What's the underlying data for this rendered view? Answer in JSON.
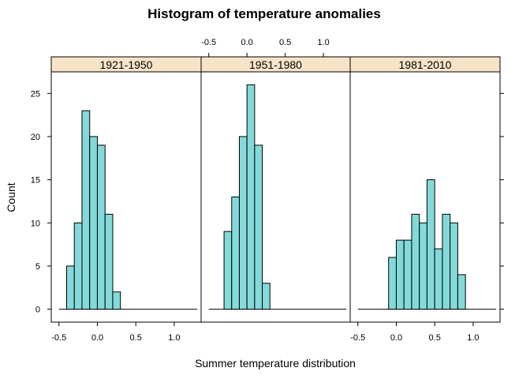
{
  "chart_data": {
    "type": "bar",
    "title": "Histogram of temperature anomalies",
    "xlabel": "Summer temperature distribution",
    "ylabel": "Count",
    "xlim": [
      -0.6,
      1.35
    ],
    "ylim": [
      -1.5,
      27.5
    ],
    "xticks": [
      -0.5,
      0.0,
      0.5,
      1.0
    ],
    "xtick_labels": [
      "-0.5",
      "0.0",
      "0.5",
      "1.0"
    ],
    "yticks": [
      0,
      5,
      10,
      15,
      20,
      25
    ],
    "ytick_labels": [
      "0",
      "5",
      "10",
      "15",
      "20",
      "25"
    ],
    "bin_width": 0.1,
    "baseline_range": [
      -0.5,
      1.3
    ],
    "panels": [
      {
        "label": "1921-1950",
        "bins": [
          {
            "x0": -0.4,
            "x1": -0.3,
            "count": 5
          },
          {
            "x0": -0.3,
            "x1": -0.2,
            "count": 10
          },
          {
            "x0": -0.2,
            "x1": -0.1,
            "count": 23
          },
          {
            "x0": -0.1,
            "x1": 0.0,
            "count": 20
          },
          {
            "x0": 0.0,
            "x1": 0.1,
            "count": 19
          },
          {
            "x0": 0.1,
            "x1": 0.2,
            "count": 11
          },
          {
            "x0": 0.2,
            "x1": 0.3,
            "count": 2
          }
        ]
      },
      {
        "label": "1951-1980",
        "bins": [
          {
            "x0": -0.3,
            "x1": -0.2,
            "count": 9
          },
          {
            "x0": -0.2,
            "x1": -0.1,
            "count": 13
          },
          {
            "x0": -0.1,
            "x1": 0.0,
            "count": 20
          },
          {
            "x0": 0.0,
            "x1": 0.1,
            "count": 26
          },
          {
            "x0": 0.1,
            "x1": 0.2,
            "count": 19
          },
          {
            "x0": 0.2,
            "x1": 0.3,
            "count": 3
          }
        ]
      },
      {
        "label": "1981-2010",
        "bins": [
          {
            "x0": -0.1,
            "x1": 0.0,
            "count": 6
          },
          {
            "x0": 0.0,
            "x1": 0.1,
            "count": 8
          },
          {
            "x0": 0.1,
            "x1": 0.2,
            "count": 8
          },
          {
            "x0": 0.2,
            "x1": 0.3,
            "count": 11
          },
          {
            "x0": 0.3,
            "x1": 0.4,
            "count": 10
          },
          {
            "x0": 0.4,
            "x1": 0.5,
            "count": 15
          },
          {
            "x0": 0.5,
            "x1": 0.6,
            "count": 7
          },
          {
            "x0": 0.6,
            "x1": 0.7,
            "count": 11
          },
          {
            "x0": 0.7,
            "x1": 0.8,
            "count": 10
          },
          {
            "x0": 0.8,
            "x1": 0.9,
            "count": 4
          }
        ]
      }
    ],
    "colors": {
      "bar_fill": "#84dada",
      "strip_fill": "#f7e4c8"
    }
  }
}
